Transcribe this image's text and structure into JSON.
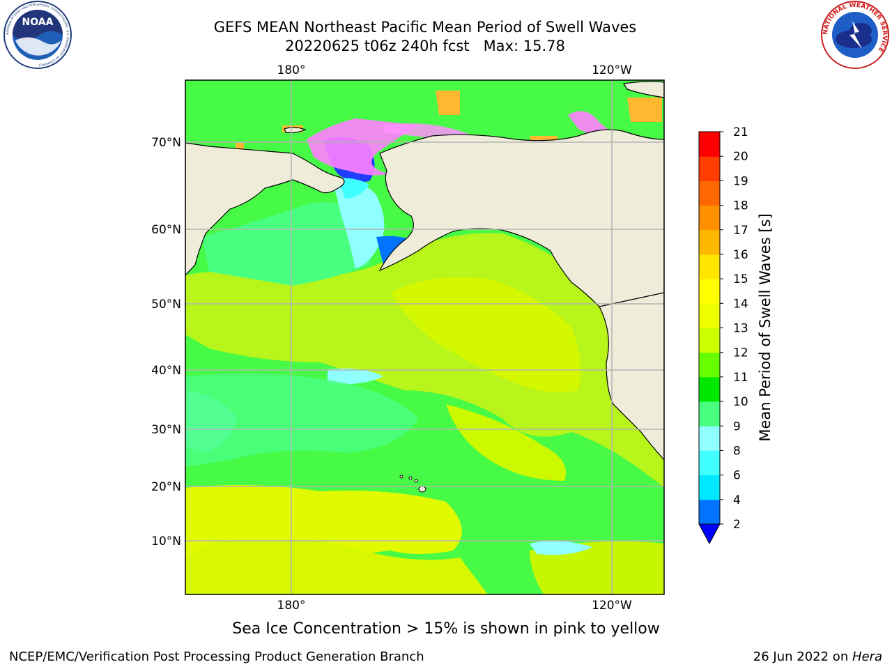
{
  "header": {
    "title_line1": "GEFS MEAN Northeast Pacific Mean Period of Swell Waves",
    "title_line2": "20220625 t06z 240h fcst   Max: 15.78"
  },
  "logos": {
    "noaa_text": "NOAA",
    "noaa_ring": "NATIONAL OCEANIC AND ATMOSPHERIC ADMINISTRATION · U.S. DEPARTMENT OF COMMERCE",
    "nws_ring": "NATIONAL WEATHER SERVICE"
  },
  "map": {
    "lon_labels_top": [
      "180°",
      "120°W"
    ],
    "lon_labels_bottom": [
      "180°",
      "120°W"
    ],
    "lat_labels": [
      "70°N",
      "60°N",
      "50°N",
      "40°N",
      "30°N",
      "20°N",
      "10°N"
    ],
    "colors": {
      "land": "#efedda",
      "ocean_base": "#46fa46",
      "grid": "#b4b4b4"
    }
  },
  "colorbar": {
    "label": "Mean Period of Swell Waves [s]",
    "ticks": [
      "21",
      "20",
      "19",
      "18",
      "17",
      "16",
      "15",
      "14",
      "13",
      "12",
      "11",
      "10",
      "9",
      "8",
      "6",
      "4",
      "2"
    ],
    "colors_bottom_to_top": [
      "#0074ff",
      "#00e8ff",
      "#40ffff",
      "#90ffff",
      "#49ff80",
      "#00e800",
      "#66ff00",
      "#ccff00",
      "#eeff00",
      "#ffff00",
      "#ffe500",
      "#ffb800",
      "#ff9000",
      "#ff6800",
      "#ff3d00",
      "#ff0000"
    ],
    "extend_color": "#0000ff"
  },
  "caption": "Sea Ice Concentration > 15% is shown in pink to yellow",
  "footer": {
    "left": "NCEP/EMC/Verification Post Processing Product Generation Branch",
    "right_prefix": "26 Jun 2022 on ",
    "right_host": "Hera"
  }
}
